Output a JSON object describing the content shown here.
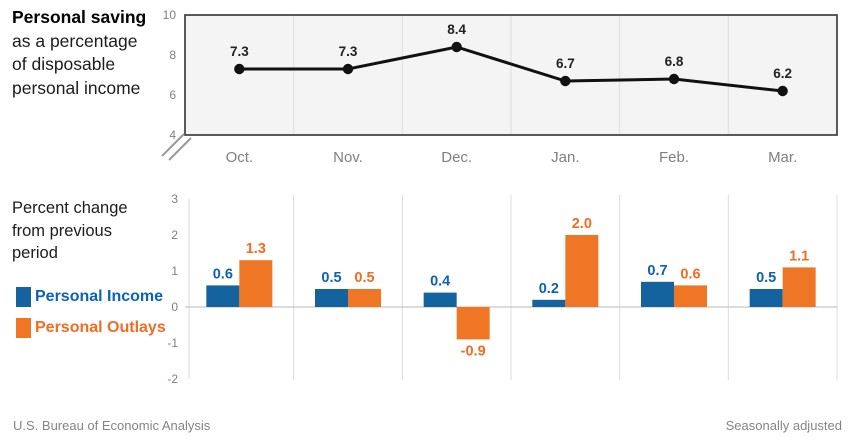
{
  "saving_label": {
    "line1": "Personal saving",
    "line2": "as a percentage",
    "line3": "of disposable",
    "line4": "personal income"
  },
  "change_label": {
    "line1": "Percent change",
    "line2": "from previous",
    "line3": "period"
  },
  "footer": {
    "source": "U.S. Bureau of Economic Analysis",
    "note": "Seasonally adjusted"
  },
  "colors": {
    "income_blue": "#15639e",
    "income_text_blue": "#0c62b4",
    "outlays_orange": "#ee7624",
    "outlays_text_orange": "#f26c21",
    "line_black": "#111111",
    "tick_gray": "#7f7f7f",
    "plot_bg_gray": "#f4f4f4"
  },
  "chart_data": [
    {
      "type": "line",
      "title": "Personal saving as a percentage of disposable personal income",
      "categories": [
        "Oct.",
        "Nov.",
        "Dec.",
        "Jan.",
        "Feb.",
        "Mar."
      ],
      "values": [
        7.3,
        7.3,
        8.4,
        6.7,
        6.8,
        6.2
      ],
      "ylim": [
        4,
        10
      ],
      "yticks": [
        10,
        8,
        6,
        4
      ],
      "axis_break": true,
      "grid": "vertical-between-categories",
      "plot_background": "#f4f4f4",
      "line_color": "#111111",
      "data_labels": [
        "7.3",
        "7.3",
        "8.4",
        "6.7",
        "6.8",
        "6.2"
      ]
    },
    {
      "type": "bar",
      "title": "Percent change from previous period",
      "categories": [
        "Oct.",
        "Nov.",
        "Dec.",
        "Jan.",
        "Feb.",
        "Mar."
      ],
      "series": [
        {
          "name": "Personal Income",
          "color": "#15639e",
          "label_color": "#0c62b4",
          "values": [
            0.6,
            0.5,
            0.4,
            0.2,
            0.7,
            0.5
          ]
        },
        {
          "name": "Personal Outlays",
          "color": "#ee7624",
          "label_color": "#f26c21",
          "values": [
            1.3,
            0.5,
            -0.9,
            2.0,
            0.6,
            1.1
          ]
        }
      ],
      "ylim": [
        -2,
        3
      ],
      "yticks": [
        3,
        2,
        1,
        0,
        -1,
        -2
      ],
      "grid": "vertical-between-categories",
      "legend_position": "left"
    }
  ]
}
